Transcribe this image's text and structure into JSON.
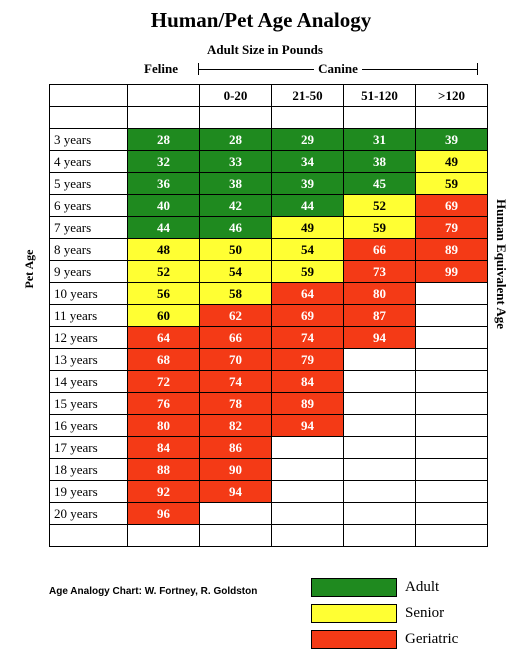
{
  "title": "Human/Pet Age Analogy",
  "subtitle": "Adult Size in Pounds",
  "feline_label": "Feline",
  "canine_label": "Canine",
  "y_left_label": "Pet Age",
  "y_right_label": "Human Equivalent Age",
  "columns": [
    "",
    "",
    "0-20",
    "21-50",
    "51-120",
    ">120"
  ],
  "colors": {
    "adult": "#1f8a1f",
    "senior": "#ffff33",
    "geriatric": "#f43a16"
  },
  "rows": [
    {
      "age": "3 years",
      "values": [
        "28",
        "28",
        "29",
        "31",
        "39"
      ],
      "status": [
        "A",
        "A",
        "A",
        "A",
        "A"
      ]
    },
    {
      "age": "4 years",
      "values": [
        "32",
        "33",
        "34",
        "38",
        "49"
      ],
      "status": [
        "A",
        "A",
        "A",
        "A",
        "S"
      ]
    },
    {
      "age": "5 years",
      "values": [
        "36",
        "38",
        "39",
        "45",
        "59"
      ],
      "status": [
        "A",
        "A",
        "A",
        "A",
        "S"
      ]
    },
    {
      "age": "6 years",
      "values": [
        "40",
        "42",
        "44",
        "52",
        "69"
      ],
      "status": [
        "A",
        "A",
        "A",
        "S",
        "G"
      ]
    },
    {
      "age": "7 years",
      "values": [
        "44",
        "46",
        "49",
        "59",
        "79"
      ],
      "status": [
        "A",
        "A",
        "S",
        "S",
        "G"
      ]
    },
    {
      "age": "8 years",
      "values": [
        "48",
        "50",
        "54",
        "66",
        "89"
      ],
      "status": [
        "S",
        "S",
        "S",
        "G",
        "G"
      ]
    },
    {
      "age": "9 years",
      "values": [
        "52",
        "54",
        "59",
        "73",
        "99"
      ],
      "status": [
        "S",
        "S",
        "S",
        "G",
        "G"
      ]
    },
    {
      "age": "10 years",
      "values": [
        "56",
        "58",
        "64",
        "80",
        ""
      ],
      "status": [
        "S",
        "S",
        "G",
        "G",
        ""
      ]
    },
    {
      "age": "11 years",
      "values": [
        "60",
        "62",
        "69",
        "87",
        ""
      ],
      "status": [
        "S",
        "G",
        "G",
        "G",
        ""
      ]
    },
    {
      "age": "12 years",
      "values": [
        "64",
        "66",
        "74",
        "94",
        ""
      ],
      "status": [
        "G",
        "G",
        "G",
        "G",
        ""
      ]
    },
    {
      "age": "13 years",
      "values": [
        "68",
        "70",
        "79",
        "",
        ""
      ],
      "status": [
        "G",
        "G",
        "G",
        "",
        ""
      ]
    },
    {
      "age": "14 years",
      "values": [
        "72",
        "74",
        "84",
        "",
        ""
      ],
      "status": [
        "G",
        "G",
        "G",
        "",
        ""
      ]
    },
    {
      "age": "15 years",
      "values": [
        "76",
        "78",
        "89",
        "",
        ""
      ],
      "status": [
        "G",
        "G",
        "G",
        "",
        ""
      ]
    },
    {
      "age": "16 years",
      "values": [
        "80",
        "82",
        "94",
        "",
        ""
      ],
      "status": [
        "G",
        "G",
        "G",
        "",
        ""
      ]
    },
    {
      "age": "17 years",
      "values": [
        "84",
        "86",
        "",
        "",
        ""
      ],
      "status": [
        "G",
        "G",
        "",
        "",
        ""
      ]
    },
    {
      "age": "18 years",
      "values": [
        "88",
        "90",
        "",
        "",
        ""
      ],
      "status": [
        "G",
        "G",
        "",
        "",
        ""
      ]
    },
    {
      "age": "19 years",
      "values": [
        "92",
        "94",
        "",
        "",
        ""
      ],
      "status": [
        "G",
        "G",
        "",
        "",
        ""
      ]
    },
    {
      "age": "20 years",
      "values": [
        "96",
        "",
        "",
        "",
        ""
      ],
      "status": [
        "G",
        "",
        "",
        "",
        ""
      ]
    }
  ],
  "credit": "Age Analogy Chart:  W. Fortney, R. Goldston",
  "legend": [
    {
      "label": "Adult",
      "key": "adult"
    },
    {
      "label": "Senior",
      "key": "senior"
    },
    {
      "label": "Geriatric",
      "key": "geriatric"
    }
  ]
}
